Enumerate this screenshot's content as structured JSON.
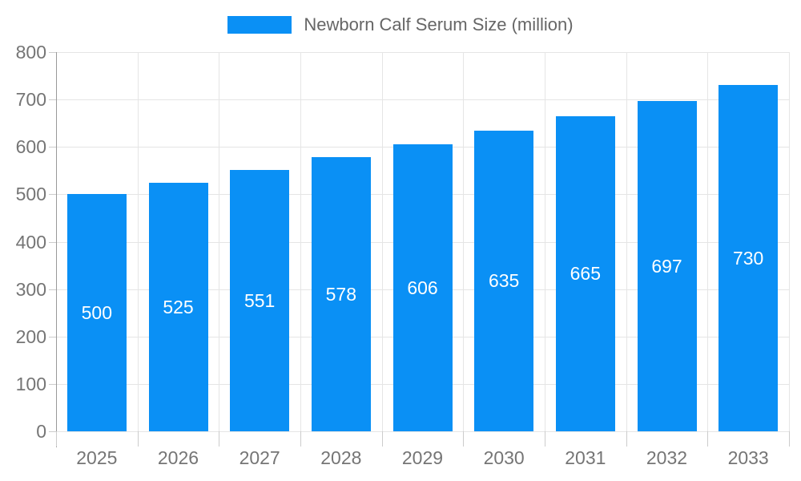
{
  "chart_data": {
    "type": "bar",
    "title": "Newborn Calf Serum Size (million)",
    "categories": [
      "2025",
      "2026",
      "2027",
      "2028",
      "2029",
      "2030",
      "2031",
      "2032",
      "2033"
    ],
    "values": [
      500,
      525,
      551,
      578,
      606,
      635,
      665,
      697,
      730
    ],
    "xlabel": "",
    "ylabel": "",
    "ylim": [
      0,
      800
    ],
    "ytick_step": 100,
    "grid": true,
    "legend_position": "top-center",
    "legend_label": "Newborn Calf Serum Size (million)",
    "bar_labels_inside": true,
    "colors": {
      "bar": "#0a90f5",
      "bar_label_text": "#ffffff",
      "grid": "#e5e5e5",
      "axis_line": "#999999",
      "tick": "#cccccc",
      "axis_text": "#757575",
      "legend_text": "#666666"
    }
  }
}
